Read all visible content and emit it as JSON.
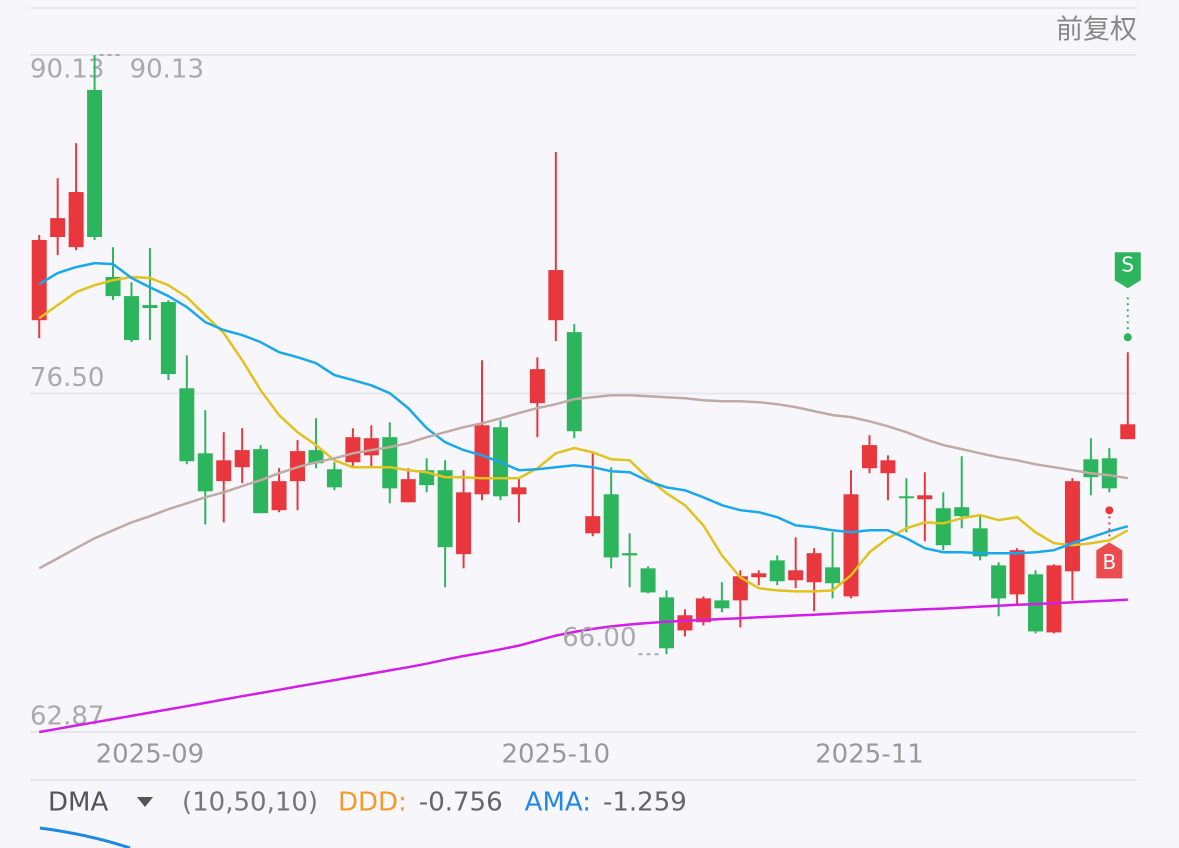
{
  "adjustment": "前复权",
  "indicator": {
    "name": "DMA",
    "params": "(10,50,10)",
    "items": [
      {
        "name": "DDD:",
        "value": -0.756,
        "color": "#f39a2b"
      },
      {
        "name": "AMA:",
        "value": -1.259,
        "color": "#1e88e5"
      }
    ]
  },
  "chart_data": {
    "type": "candlestick",
    "categories": [
      null,
      null,
      null,
      null,
      null,
      null,
      "2025-09",
      null,
      null,
      null,
      null,
      null,
      null,
      null,
      null,
      null,
      null,
      null,
      null,
      null,
      null,
      null,
      null,
      null,
      null,
      null,
      null,
      null,
      "2025-10",
      null,
      null,
      null,
      null,
      null,
      null,
      null,
      null,
      null,
      null,
      null,
      null,
      null,
      null,
      null,
      null,
      "2025-11",
      null,
      null,
      null,
      null,
      null,
      null,
      null,
      null,
      null,
      null,
      null,
      null,
      null,
      null
    ],
    "open": [
      79.45,
      82.8,
      82.39,
      88.72,
      81.19,
      80.42,
      80.06,
      80.18,
      76.71,
      74.09,
      72.97,
      73.53,
      74.26,
      71.8,
      72.97,
      74.22,
      73.45,
      73.73,
      74.01,
      74.74,
      72.12,
      73.41,
      73.41,
      70.03,
      72.44,
      75.14,
      72.44,
      76.11,
      79.45,
      78.97,
      70.87,
      72.44,
      70.07,
      69.46,
      68.29,
      66.96,
      67.29,
      68.17,
      68.17,
      69.1,
      69.78,
      68.98,
      68.9,
      69.5,
      68.33,
      73.49,
      73.29,
      72.36,
      72.24,
      71.88,
      71.92,
      71.07,
      69.58,
      68.41,
      69.22,
      66.88,
      69.34,
      73.85,
      73.89,
      74.66
    ],
    "high": [
      82.88,
      85.17,
      86.58,
      90.13,
      82.39,
      80.98,
      82.35,
      80.26,
      78.04,
      75.83,
      74.94,
      75.1,
      74.42,
      73.49,
      74.62,
      75.5,
      73.73,
      75.1,
      75.22,
      75.34,
      73.49,
      73.89,
      73.81,
      73.41,
      77.84,
      75.42,
      73.13,
      77.96,
      86.22,
      79.29,
      74.13,
      73.53,
      70.87,
      69.54,
      68.57,
      67.81,
      68.33,
      68.9,
      69.38,
      69.38,
      69.98,
      70.71,
      70.27,
      70.91,
      73.41,
      74.82,
      74.01,
      73.09,
      73.33,
      72.52,
      73.97,
      71.6,
      69.7,
      70.27,
      69.38,
      69.62,
      73.09,
      74.7,
      74.3,
      78.16
    ],
    "low": [
      78.73,
      82.07,
      82.27,
      82.68,
      80.26,
      78.57,
      78.65,
      77.04,
      73.65,
      71.23,
      71.31,
      72.89,
      71.68,
      71.72,
      71.8,
      73.49,
      72.6,
      73.57,
      73.53,
      72.08,
      72.12,
      72.52,
      68.7,
      69.46,
      72.2,
      72.2,
      71.31,
      74.74,
      78.61,
      74.7,
      70.75,
      69.46,
      68.7,
      68.45,
      66.0,
      66.72,
      67.16,
      67.69,
      67.08,
      68.78,
      68.78,
      68.66,
      67.73,
      68.25,
      68.25,
      73.29,
      72.2,
      70.91,
      70.55,
      70.19,
      71.07,
      69.78,
      67.53,
      67.97,
      66.84,
      66.84,
      68.17,
      72.4,
      72.52,
      74.66
    ],
    "close": [
      82.68,
      83.56,
      84.61,
      82.8,
      80.42,
      78.65,
      79.94,
      77.28,
      73.77,
      72.56,
      73.81,
      74.22,
      71.68,
      72.97,
      74.18,
      73.69,
      72.72,
      74.74,
      74.7,
      72.68,
      73.05,
      72.81,
      70.31,
      72.52,
      75.22,
      72.36,
      72.72,
      77.48,
      81.47,
      74.98,
      71.56,
      69.9,
      69.98,
      68.49,
      66.24,
      67.57,
      68.25,
      67.85,
      69.14,
      69.26,
      68.94,
      69.38,
      70.07,
      68.86,
      72.44,
      74.42,
      73.81,
      72.28,
      72.4,
      70.39,
      71.56,
      69.94,
      68.25,
      70.19,
      66.92,
      69.58,
      72.97,
      73.13,
      72.68,
      75.26
    ],
    "up_color": "#e8383d",
    "down_color": "#2db55d",
    "series": [
      {
        "color": "#e2c21e",
        "values": [
          79.53,
          80.06,
          80.58,
          80.86,
          81.06,
          81.19,
          81.15,
          80.86,
          80.38,
          79.65,
          78.93,
          77.84,
          76.63,
          75.63,
          74.94,
          74.42,
          73.81,
          73.53,
          73.53,
          73.53,
          73.41,
          73.33,
          73.13,
          73.13,
          73.09,
          73.09,
          73.09,
          73.49,
          74.09,
          74.3,
          74.13,
          73.85,
          73.81,
          73.09,
          72.48,
          72.0,
          71.19,
          69.98,
          69.1,
          68.66,
          68.57,
          68.53,
          68.53,
          68.57,
          69.18,
          70.11,
          70.67,
          71.07,
          71.31,
          71.27,
          71.48,
          71.6,
          71.4,
          71.52,
          70.91,
          70.47,
          70.39,
          70.47,
          70.59,
          70.99
        ]
      },
      {
        "color": "#1aa8ec",
        "values": [
          80.9,
          81.35,
          81.59,
          81.75,
          81.71,
          81.15,
          80.78,
          80.42,
          79.98,
          79.37,
          79.05,
          78.85,
          78.57,
          78.16,
          77.96,
          77.72,
          77.24,
          77.04,
          76.83,
          76.51,
          75.91,
          75.1,
          74.54,
          74.22,
          74.01,
          73.73,
          73.41,
          73.45,
          73.53,
          73.61,
          73.53,
          73.37,
          73.33,
          72.97,
          72.72,
          72.6,
          72.32,
          72.0,
          71.8,
          71.72,
          71.52,
          71.19,
          71.11,
          70.99,
          70.91,
          70.99,
          70.99,
          70.67,
          70.27,
          70.11,
          70.11,
          70.07,
          70.07,
          70.07,
          70.11,
          70.19,
          70.47,
          70.71,
          70.95,
          71.15
        ]
      },
      {
        "color": "#bfaaa5",
        "values": [
          69.46,
          69.86,
          70.27,
          70.67,
          70.99,
          71.31,
          71.56,
          71.84,
          72.08,
          72.32,
          72.52,
          72.77,
          73.01,
          73.29,
          73.53,
          73.73,
          73.89,
          74.09,
          74.22,
          74.34,
          74.5,
          74.74,
          74.94,
          75.14,
          75.3,
          75.5,
          75.71,
          75.91,
          76.07,
          76.27,
          76.35,
          76.43,
          76.43,
          76.39,
          76.35,
          76.31,
          76.23,
          76.19,
          76.19,
          76.15,
          76.07,
          75.95,
          75.79,
          75.63,
          75.55,
          75.38,
          75.18,
          74.94,
          74.66,
          74.42,
          74.26,
          74.09,
          73.93,
          73.81,
          73.65,
          73.53,
          73.41,
          73.29,
          73.21,
          73.09
        ]
      },
      {
        "color": "#d21ee8",
        "values": [
          62.87,
          63.0,
          63.13,
          63.26,
          63.39,
          63.52,
          63.65,
          63.78,
          63.91,
          64.04,
          64.18,
          64.31,
          64.44,
          64.57,
          64.7,
          64.83,
          64.96,
          65.09,
          65.22,
          65.35,
          65.48,
          65.62,
          65.78,
          65.93,
          66.06,
          66.2,
          66.35,
          66.55,
          66.75,
          66.9,
          67.02,
          67.12,
          67.2,
          67.26,
          67.31,
          67.35,
          67.38,
          67.42,
          67.45,
          67.49,
          67.52,
          67.56,
          67.59,
          67.63,
          67.67,
          67.7,
          67.74,
          67.77,
          67.81,
          67.84,
          67.88,
          67.92,
          67.95,
          67.99,
          68.02,
          68.06,
          68.09,
          68.13,
          68.16,
          68.2
        ]
      }
    ],
    "ylim": [
      62.87,
      92.02
    ],
    "yticks": [
      62.87,
      {
        "value": 76.5,
        "label": "76.50"
      },
      90.13
    ],
    "grid": true,
    "annotations": [
      {
        "label": "90.13",
        "value": 90.13
      },
      {
        "label": "66.00",
        "value": 66.0
      }
    ],
    "signals": [
      null,
      null,
      null,
      null,
      null,
      null,
      null,
      null,
      null,
      null,
      null,
      null,
      null,
      null,
      null,
      null,
      null,
      null,
      null,
      null,
      null,
      null,
      null,
      null,
      null,
      null,
      null,
      null,
      null,
      null,
      null,
      null,
      null,
      null,
      null,
      null,
      null,
      null,
      null,
      null,
      null,
      null,
      null,
      null,
      null,
      null,
      null,
      null,
      null,
      null,
      null,
      null,
      null,
      null,
      null,
      null,
      null,
      null,
      "B",
      "S"
    ],
    "signal_colors": {
      "B": "#e8383d",
      "S": "#2db55d"
    }
  }
}
